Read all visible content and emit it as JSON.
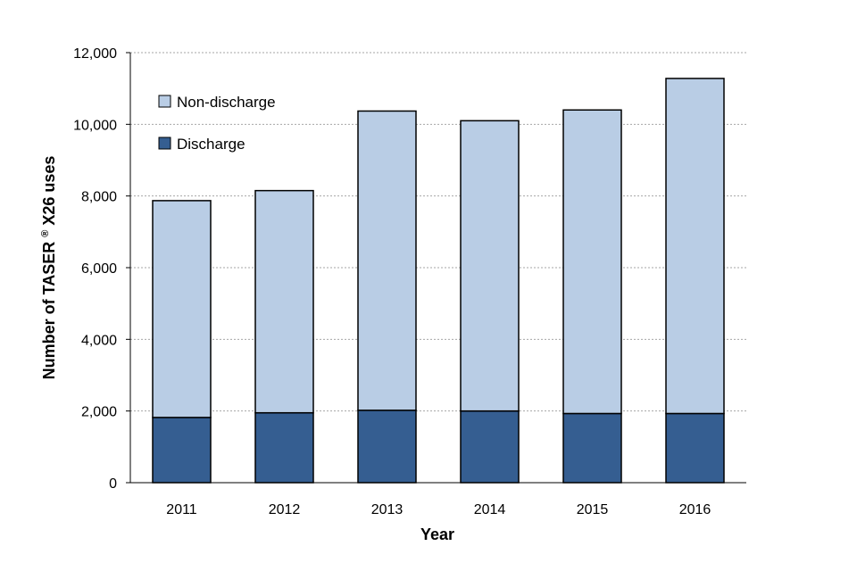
{
  "chart_data": {
    "type": "bar",
    "stacked": true,
    "title": "",
    "xlabel": "Year",
    "ylabel_prefix": "Number of TASER",
    "ylabel_superscript": "®",
    "ylabel_suffix": "X26 uses",
    "categories": [
      "2011",
      "2012",
      "2013",
      "2014",
      "2015",
      "2016"
    ],
    "series": [
      {
        "name": "Discharge",
        "values": [
          1820,
          1950,
          2020,
          2000,
          1930,
          1930
        ],
        "color": "#355E91"
      },
      {
        "name": "Non-discharge",
        "values": [
          6050,
          6200,
          8350,
          8100,
          8470,
          9350
        ],
        "color": "#B9CDE5"
      }
    ],
    "ylim": [
      0,
      12000
    ],
    "yticks": [
      0,
      2000,
      4000,
      6000,
      8000,
      10000,
      12000
    ],
    "ytick_labels": [
      "0",
      "2,000",
      "4,000",
      "6,000",
      "8,000",
      "10,000",
      "12,000"
    ],
    "grid": true,
    "legend_position": "top-left",
    "legend_order": [
      "Non-discharge",
      "Discharge"
    ]
  }
}
